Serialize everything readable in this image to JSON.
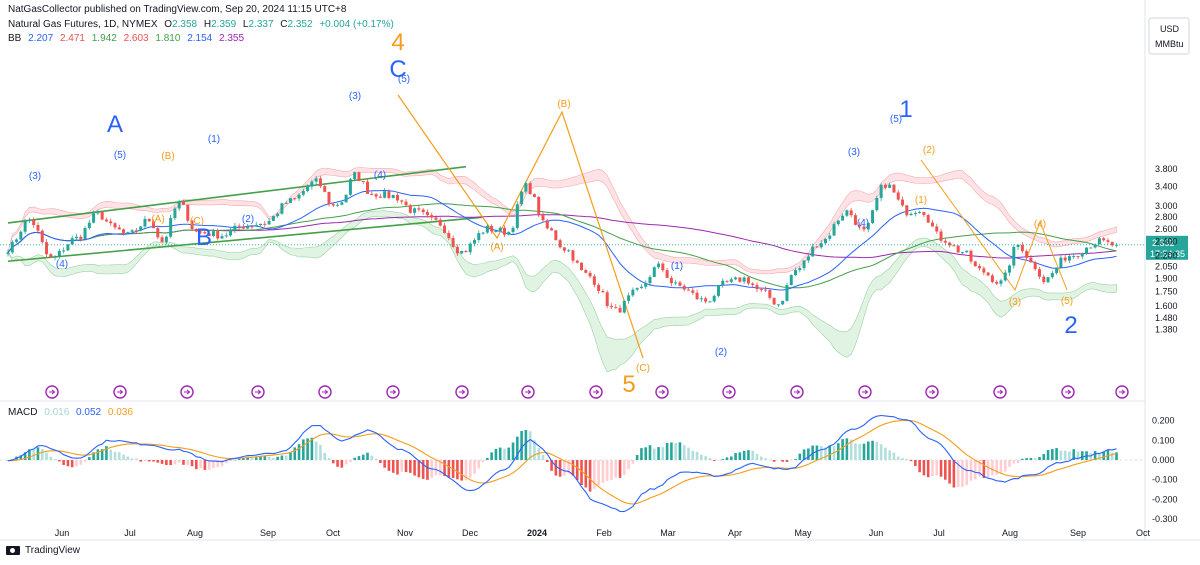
{
  "header": {
    "publisher": "NatGasCollector published on TradingView.com, Sep 20, 2024 11:15 UTC+8",
    "symbol": "Natural Gas Futures, 1D, NYMEX",
    "o_label": "O",
    "o": "2.358",
    "h_label": "H",
    "h": "2.359",
    "l_label": "L",
    "l": "2.337",
    "c_label": "C",
    "c": "2.352",
    "change": "+0.004 (+0.17%)",
    "bb_label": "BB",
    "bb_values": [
      "2.207",
      "2.471",
      "1.942",
      "2.603",
      "1.810",
      "2.154",
      "2.355"
    ],
    "macd_label": "MACD",
    "macd_values": [
      "0.016",
      "0.052",
      "0.036"
    ],
    "footer": "TradingView"
  },
  "colors": {
    "up": "#26a69a",
    "down": "#ef5350",
    "blue": "#2962ff",
    "orange": "#f59c1a",
    "green": "#43a047",
    "purple": "#9c27b0",
    "bb_upper_fill": "#fbd0d4",
    "bb_lower_fill": "#d4eed7",
    "channel": "#43a047",
    "event": "#9c27b0"
  },
  "chart_data": [
    {
      "type": "candlestick",
      "title": "Natural Gas Futures, 1D, NYMEX",
      "unit_label": [
        "USD",
        "MMBtu"
      ],
      "y_ticks": [
        1.38,
        1.48,
        1.6,
        1.75,
        1.9,
        2.05,
        2.2,
        2.4,
        2.6,
        2.8,
        3.0,
        3.4,
        3.8
      ],
      "y_tick_labels": [
        "1.380",
        "1.480",
        "1.600",
        "1.750",
        "1.900",
        "2.050",
        "2.200",
        "2.400",
        "2.600",
        "2.800",
        "3.000",
        "3.400",
        "3.800"
      ],
      "x_labels": [
        "Jun",
        "Jul",
        "Aug",
        "Sep",
        "Oct",
        "Nov",
        "Dec",
        "2024",
        "Feb",
        "Mar",
        "Apr",
        "May",
        "Jun",
        "Jul",
        "Aug",
        "Sep",
        "Oct"
      ],
      "last_price": "2.352",
      "countdown": "17:54:35",
      "price_path": [
        [
          0,
          2.3
        ],
        [
          5,
          2.75
        ],
        [
          10,
          2.15
        ],
        [
          16,
          2.45
        ],
        [
          21,
          2.85
        ],
        [
          25,
          2.6
        ],
        [
          28,
          2.5
        ],
        [
          33,
          2.75
        ],
        [
          36,
          2.4
        ],
        [
          40,
          3.05
        ],
        [
          44,
          2.55
        ],
        [
          50,
          2.5
        ],
        [
          55,
          2.65
        ],
        [
          60,
          2.7
        ],
        [
          66,
          3.1
        ],
        [
          72,
          3.5
        ],
        [
          76,
          3.0
        ],
        [
          78,
          3.1
        ],
        [
          81,
          3.65
        ],
        [
          85,
          3.25
        ],
        [
          90,
          3.2
        ],
        [
          95,
          2.9
        ],
        [
          100,
          2.72
        ],
        [
          106,
          2.25
        ],
        [
          112,
          2.6
        ],
        [
          117,
          2.55
        ],
        [
          121,
          3.4
        ],
        [
          126,
          2.6
        ],
        [
          130,
          2.3
        ],
        [
          135,
          1.95
        ],
        [
          142,
          1.55
        ],
        [
          147,
          1.75
        ],
        [
          152,
          2.05
        ],
        [
          156,
          1.82
        ],
        [
          163,
          1.65
        ],
        [
          168,
          1.85
        ],
        [
          172,
          1.9
        ],
        [
          176,
          1.75
        ],
        [
          180,
          1.62
        ],
        [
          184,
          2.0
        ],
        [
          190,
          2.4
        ],
        [
          196,
          2.9
        ],
        [
          200,
          2.55
        ],
        [
          205,
          3.45
        ],
        [
          210,
          2.9
        ],
        [
          213,
          2.95
        ],
        [
          218,
          2.45
        ],
        [
          223,
          2.25
        ],
        [
          227,
          2.0
        ],
        [
          232,
          1.85
        ],
        [
          236,
          2.35
        ],
        [
          240,
          2.05
        ],
        [
          242,
          1.88
        ],
        [
          248,
          2.2
        ],
        [
          255,
          2.4
        ],
        [
          258,
          2.352
        ]
      ],
      "wave_labels": [
        {
          "text": "A",
          "color": "blue",
          "size": "large"
        },
        {
          "text": "B",
          "color": "blue",
          "size": "large"
        },
        {
          "text": "C",
          "color": "blue",
          "size": "large"
        },
        {
          "text": "4",
          "color": "orange",
          "size": "large"
        },
        {
          "text": "5",
          "color": "orange",
          "size": "large"
        },
        {
          "text": "1",
          "color": "blue",
          "size": "large"
        },
        {
          "text": "2",
          "color": "blue",
          "size": "large"
        },
        {
          "text": "(1)",
          "color": "blue"
        },
        {
          "text": "(2)",
          "color": "blue"
        },
        {
          "text": "(3)",
          "color": "blue"
        },
        {
          "text": "(4)",
          "color": "blue"
        },
        {
          "text": "(5)",
          "color": "blue"
        },
        {
          "text": "(A)",
          "color": "orange"
        },
        {
          "text": "(B)",
          "color": "orange"
        },
        {
          "text": "(C)",
          "color": "orange"
        },
        {
          "text": "(1)",
          "color": "orange"
        },
        {
          "text": "(2)",
          "color": "orange"
        },
        {
          "text": "(3)",
          "color": "orange"
        },
        {
          "text": "(4)",
          "color": "orange"
        },
        {
          "text": "(5)",
          "color": "orange"
        }
      ]
    },
    {
      "type": "bar",
      "title": "MACD",
      "y_ticks": [
        0.2,
        0.1,
        0.0,
        -0.1,
        -0.2,
        -0.3
      ],
      "y_tick_labels": [
        "0.200",
        "0.100",
        "0.000",
        "-0.100",
        "-0.200",
        "-0.300"
      ],
      "series": [
        {
          "name": "MACD",
          "color": "blue"
        },
        {
          "name": "Signal",
          "color": "orange"
        },
        {
          "name": "Histogram",
          "color": "up/down"
        }
      ],
      "macd_path": [
        [
          0,
          0.0
        ],
        [
          8,
          0.07
        ],
        [
          16,
          0.01
        ],
        [
          24,
          0.1
        ],
        [
          32,
          0.08
        ],
        [
          40,
          0.05
        ],
        [
          48,
          -0.01
        ],
        [
          56,
          0.02
        ],
        [
          64,
          0.04
        ],
        [
          72,
          0.18
        ],
        [
          78,
          0.1
        ],
        [
          84,
          0.15
        ],
        [
          92,
          0.05
        ],
        [
          100,
          -0.05
        ],
        [
          108,
          -0.16
        ],
        [
          116,
          -0.05
        ],
        [
          122,
          0.1
        ],
        [
          130,
          -0.05
        ],
        [
          138,
          -0.22
        ],
        [
          144,
          -0.26
        ],
        [
          150,
          -0.15
        ],
        [
          158,
          -0.06
        ],
        [
          166,
          -0.08
        ],
        [
          174,
          -0.02
        ],
        [
          182,
          -0.05
        ],
        [
          190,
          0.05
        ],
        [
          198,
          0.16
        ],
        [
          204,
          0.23
        ],
        [
          210,
          0.2
        ],
        [
          216,
          0.1
        ],
        [
          224,
          -0.05
        ],
        [
          232,
          -0.11
        ],
        [
          240,
          -0.07
        ],
        [
          246,
          -0.01
        ],
        [
          252,
          0.02
        ],
        [
          258,
          0.052
        ]
      ]
    }
  ]
}
